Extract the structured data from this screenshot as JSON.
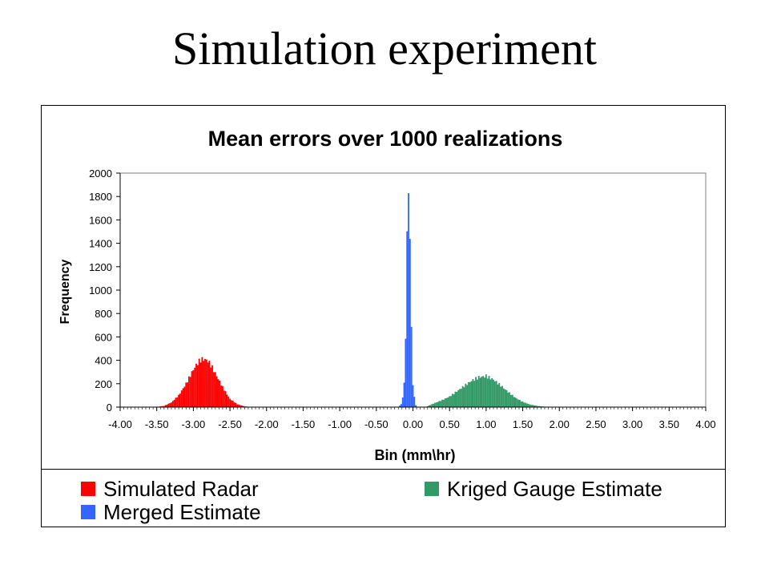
{
  "slide_title": "Simulation experiment",
  "chart_data": {
    "type": "bar",
    "title": "Mean errors over 1000 realizations",
    "xlabel": "Bin (mm\\hr)",
    "ylabel": "Frequency",
    "xlim": [
      -4.0,
      4.0
    ],
    "ylim": [
      0,
      2000
    ],
    "x_ticks": [
      "-4.00",
      "-3.50",
      "-3.00",
      "-2.50",
      "-2.00",
      "-1.50",
      "-1.00",
      "-0.50",
      "0.00",
      "0.50",
      "1.00",
      "1.50",
      "2.00",
      "2.50",
      "3.00",
      "3.50",
      "4.00"
    ],
    "y_ticks": [
      "0",
      "200",
      "400",
      "600",
      "800",
      "1000",
      "1200",
      "1400",
      "1600",
      "1800",
      "2000"
    ],
    "grid": false,
    "legend_position": "bottom",
    "series": [
      {
        "name": "Simulated Radar",
        "color": "#ff0000",
        "x": [
          -3.5,
          -3.4,
          -3.3,
          -3.2,
          -3.1,
          -3.0,
          -2.95,
          -2.9,
          -2.85,
          -2.8,
          -2.75,
          -2.7,
          -2.6,
          -2.5,
          -2.4,
          -2.3,
          -2.2
        ],
        "values": [
          2,
          10,
          40,
          100,
          200,
          320,
          370,
          405,
          410,
          395,
          350,
          290,
          170,
          70,
          25,
          6,
          1
        ]
      },
      {
        "name": "Merged Estimate",
        "color": "#3366ff",
        "x": [
          -0.2,
          -0.15,
          -0.12,
          -0.1,
          -0.09,
          -0.08,
          -0.07,
          -0.06,
          -0.05,
          -0.04,
          -0.03,
          -0.02,
          0.0,
          0.03,
          0.06
        ],
        "values": [
          3,
          30,
          200,
          600,
          1100,
          1500,
          1700,
          1790,
          1720,
          1500,
          1100,
          650,
          200,
          25,
          2
        ],
        "label_in_legend": true
      },
      {
        "name": "Kriged Gauge Estimate",
        "color": "#339966",
        "x": [
          0.2,
          0.3,
          0.4,
          0.5,
          0.6,
          0.7,
          0.8,
          0.9,
          1.0,
          1.1,
          1.2,
          1.3,
          1.4,
          1.5,
          1.6,
          1.7,
          1.8,
          1.9
        ],
        "values": [
          8,
          35,
          60,
          90,
          135,
          180,
          225,
          255,
          265,
          235,
          185,
          130,
          80,
          45,
          22,
          10,
          4,
          1
        ]
      }
    ]
  }
}
